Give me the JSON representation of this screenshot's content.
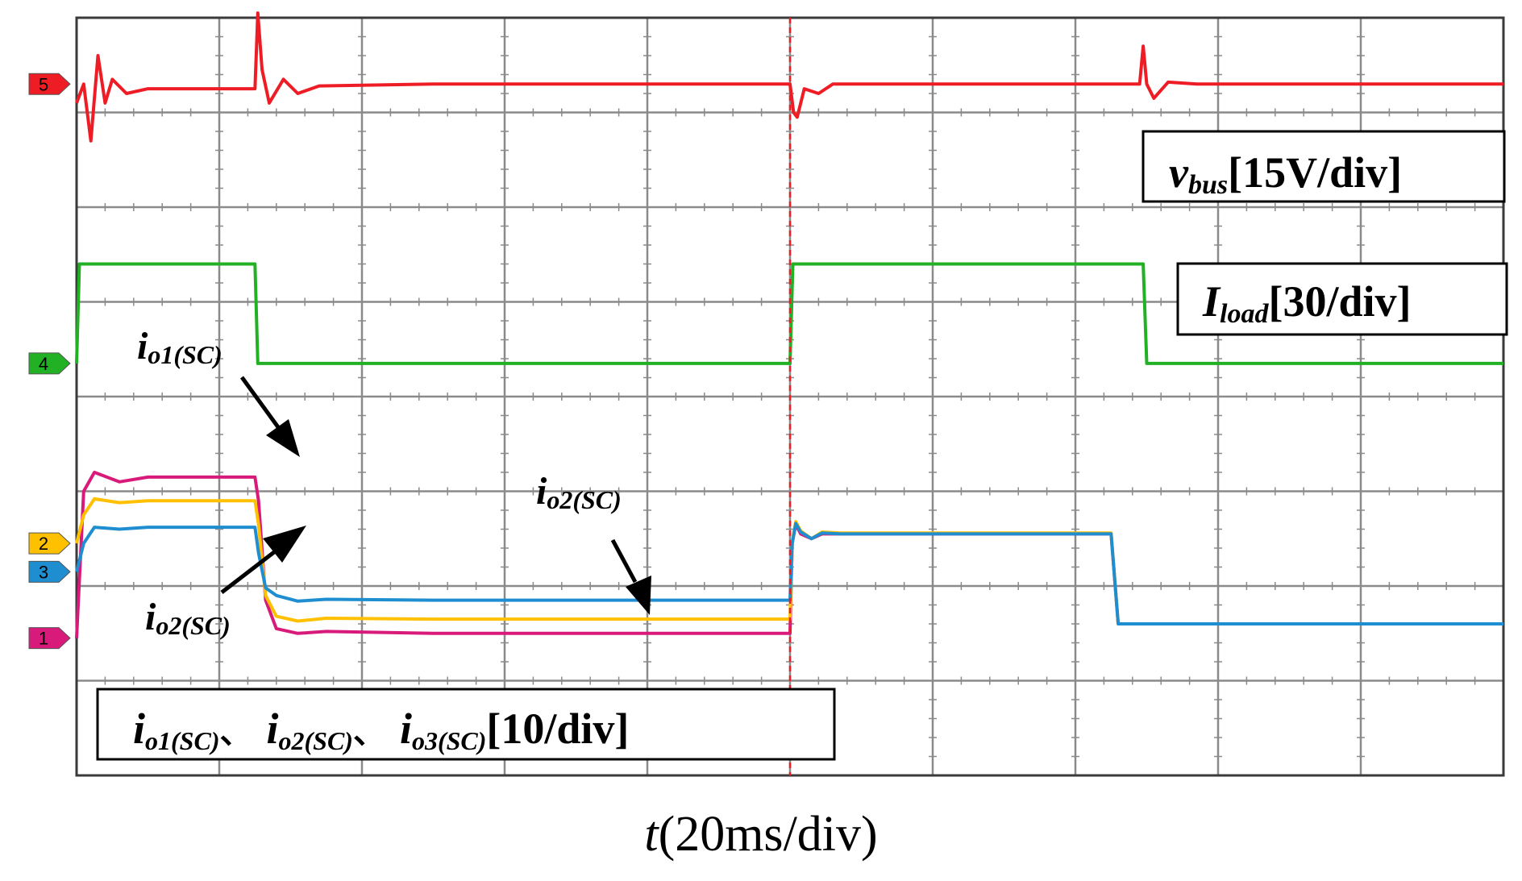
{
  "chart_data": {
    "type": "line",
    "x_label": {
      "var": "t",
      "rest": "(20ms/div)"
    },
    "divisions": {
      "x": 10,
      "y": 8
    },
    "grid": true,
    "x_range": [
      0,
      200
    ],
    "x_unit": "ms",
    "channels": [
      {
        "id": "5",
        "color": "#ee1c25",
        "name": "v",
        "sub": "bus",
        "scale": "[15V/div]",
        "marker_level_div": 7.3
      },
      {
        "id": "4",
        "color": "#22b025",
        "name": "I",
        "sub": "load",
        "scale": "[30/div]",
        "marker_level_div": 4.35
      },
      {
        "id": "2",
        "color": "#ffc000",
        "marker_level_div": 2.45
      },
      {
        "id": "3",
        "color": "#1f8ed0",
        "marker_level_div": 2.15
      },
      {
        "id": "1",
        "color": "#d81b7a",
        "marker_level_div": 1.45
      }
    ],
    "series": [
      {
        "channel": "5",
        "x": [
          0,
          1,
          2,
          3,
          4,
          5,
          7,
          10,
          25,
          25.4,
          26,
          27,
          29,
          31,
          34,
          50,
          100,
          100.5,
          101,
          102,
          104,
          106,
          110,
          149,
          149.5,
          150,
          151,
          153,
          157,
          200
        ],
        "y": [
          7.1,
          7.3,
          6.7,
          7.6,
          7.1,
          7.35,
          7.2,
          7.25,
          7.25,
          8.05,
          7.45,
          7.1,
          7.35,
          7.2,
          7.28,
          7.3,
          7.3,
          7.0,
          6.95,
          7.25,
          7.2,
          7.3,
          7.3,
          7.3,
          7.7,
          7.3,
          7.15,
          7.32,
          7.3,
          7.3
        ]
      },
      {
        "channel": "4",
        "x": [
          0,
          0.4,
          25,
          25.4,
          100,
          100.4,
          149.5,
          150,
          200
        ],
        "y": [
          4.35,
          5.4,
          5.4,
          4.35,
          4.35,
          5.4,
          5.4,
          4.35,
          4.35
        ]
      },
      {
        "channel": "1",
        "x": [
          0,
          1,
          2.5,
          6,
          10,
          25,
          25.5,
          26.5,
          28,
          31,
          35,
          50,
          100,
          100.3,
          100.8,
          101.5,
          103,
          104.5,
          107,
          145,
          146,
          200
        ],
        "y": [
          1.45,
          3.0,
          3.2,
          3.1,
          3.15,
          3.15,
          2.9,
          1.85,
          1.55,
          1.5,
          1.52,
          1.5,
          1.5,
          2.45,
          2.65,
          2.55,
          2.5,
          2.55,
          2.55,
          2.55,
          1.6,
          1.6
        ]
      },
      {
        "channel": "2",
        "x": [
          0,
          1,
          2.5,
          6,
          10,
          25,
          25.5,
          26.5,
          28,
          31,
          35,
          50,
          100,
          100.3,
          100.8,
          101.5,
          103,
          104.5,
          107,
          145,
          146,
          200
        ],
        "y": [
          2.45,
          2.75,
          2.92,
          2.88,
          2.9,
          2.9,
          2.65,
          1.9,
          1.68,
          1.63,
          1.66,
          1.65,
          1.65,
          2.45,
          2.68,
          2.58,
          2.5,
          2.57,
          2.56,
          2.56,
          1.6,
          1.6
        ]
      },
      {
        "channel": "3",
        "x": [
          0,
          1,
          2.5,
          6,
          10,
          25,
          25.5,
          26.5,
          28,
          31,
          35,
          50,
          100,
          100.3,
          100.8,
          101.5,
          103,
          104.5,
          107,
          145,
          146,
          200
        ],
        "y": [
          2.15,
          2.45,
          2.62,
          2.6,
          2.62,
          2.62,
          2.35,
          1.98,
          1.9,
          1.84,
          1.86,
          1.85,
          1.85,
          2.45,
          2.66,
          2.57,
          2.5,
          2.56,
          2.55,
          2.55,
          1.6,
          1.6
        ]
      }
    ],
    "annotations": {
      "io1_arrow": {
        "main": "i",
        "sub": "o1(SC)"
      },
      "io2_arrow_left": {
        "main": "i",
        "sub": "o2(SC)"
      },
      "io2_arrow_right": {
        "main": "i",
        "sub": "o2(SC)"
      },
      "current_box": {
        "parts": [
          {
            "main": "i",
            "sub": "o1(SC)",
            "sep": "、"
          },
          {
            "main": "i",
            "sub": "o2(SC)",
            "sep": "、"
          },
          {
            "main": "i",
            "sub": "o3(SC)",
            "sep": ""
          }
        ],
        "scale": "[10/div]"
      }
    },
    "cursor": {
      "x": 100,
      "style": "dashed",
      "color": "#ee1c25"
    }
  }
}
